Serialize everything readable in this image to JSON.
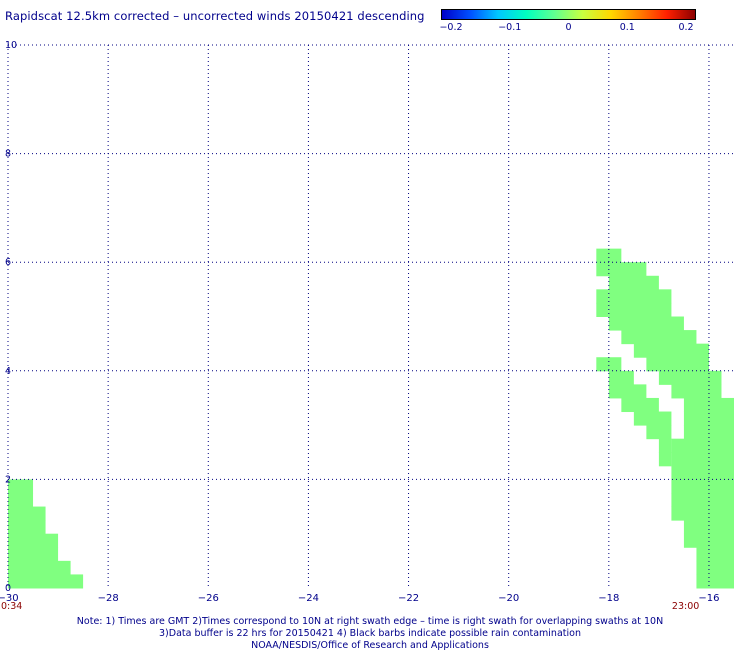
{
  "title": "Rapidscat 12.5km corrected – uncorrected winds 20150421 descending",
  "colorbar": {
    "labels": [
      "−0.2",
      "−0.1",
      "0",
      "0.1",
      "0.2"
    ],
    "stops": [
      "#0000c8",
      "#0050ff",
      "#00c8ff",
      "#00ffc0",
      "#60ff90",
      "#c8ff40",
      "#ffd800",
      "#ff8000",
      "#ff2000",
      "#8b0000"
    ]
  },
  "colors": {
    "swath": "#80ff80",
    "grid": "#000080",
    "text": "#00008b",
    "time": "#8b0000"
  },
  "chart_data": {
    "type": "heatmap",
    "xlabel": "",
    "ylabel": "",
    "xlim": [
      -30,
      -15.5
    ],
    "ylim": [
      0,
      10
    ],
    "x_ticks": [
      "−30",
      "−28",
      "−26",
      "−24",
      "−22",
      "−20",
      "−18",
      "−16"
    ],
    "y_ticks": [
      "0",
      "2",
      "4",
      "6",
      "8",
      "10"
    ],
    "cell_size_deg": 0.25,
    "times": [
      {
        "label": "0:34",
        "lon": -30.0
      },
      {
        "label": "23:00",
        "lon": -16.6
      }
    ],
    "swaths": [
      {
        "name": "west",
        "value": 0.0,
        "rows": [
          {
            "y0": 1.75,
            "x0": -30.0,
            "x1": -29.5
          },
          {
            "y0": 1.5,
            "x0": -30.0,
            "x1": -29.5
          },
          {
            "y0": 1.25,
            "x0": -30.0,
            "x1": -29.25
          },
          {
            "y0": 1.0,
            "x0": -30.0,
            "x1": -29.25
          },
          {
            "y0": 0.75,
            "x0": -30.0,
            "x1": -29.0
          },
          {
            "y0": 0.5,
            "x0": -30.0,
            "x1": -29.0
          },
          {
            "y0": 0.25,
            "x0": -30.0,
            "x1": -28.75
          },
          {
            "y0": 0.0,
            "x0": -30.0,
            "x1": -28.5
          }
        ]
      },
      {
        "name": "east",
        "value": 0.0,
        "rows": [
          {
            "y0": 6.0,
            "x0": -18.25,
            "x1": -17.75
          },
          {
            "y0": 5.75,
            "x0": -18.25,
            "x1": -17.25
          },
          {
            "y0": 5.5,
            "x0": -18.0,
            "x1": -17.0
          },
          {
            "y0": 5.25,
            "x0": -18.0,
            "x1": -16.75
          },
          {
            "y0": 5.0,
            "x0": -18.0,
            "x1": -16.75
          },
          {
            "y0": 4.75,
            "x0": -18.0,
            "x1": -16.5
          },
          {
            "y0": 4.5,
            "x0": -17.75,
            "x1": -16.25
          },
          {
            "y0": 4.25,
            "x0": -17.5,
            "x1": -16.0
          },
          {
            "y0": 4.0,
            "x0": -17.25,
            "x1": -16.0
          },
          {
            "y0": 3.75,
            "x0": -17.0,
            "x1": -15.75
          },
          {
            "y0": 3.5,
            "x0": -16.75,
            "x1": -15.75
          },
          {
            "y0": 3.25,
            "x0": -16.5,
            "x1": -15.5
          },
          {
            "y0": 3.0,
            "x0": -16.5,
            "x1": -15.5
          },
          {
            "y0": 2.75,
            "x0": -16.5,
            "x1": -15.5
          },
          {
            "y0": 2.5,
            "x0": -16.75,
            "x1": -15.5
          },
          {
            "y0": 2.25,
            "x0": -16.75,
            "x1": -15.5
          },
          {
            "y0": 2.0,
            "x0": -16.75,
            "x1": -15.5
          },
          {
            "y0": 1.75,
            "x0": -16.75,
            "x1": -15.5
          },
          {
            "y0": 1.5,
            "x0": -16.75,
            "x1": -15.5
          },
          {
            "y0": 1.25,
            "x0": -16.75,
            "x1": -15.5
          },
          {
            "y0": 1.0,
            "x0": -16.5,
            "x1": -15.5
          },
          {
            "y0": 0.75,
            "x0": -16.5,
            "x1": -15.5
          },
          {
            "y0": 0.5,
            "x0": -16.25,
            "x1": -15.5
          },
          {
            "y0": 0.25,
            "x0": -16.25,
            "x1": -15.5
          },
          {
            "y0": 0.0,
            "x0": -16.25,
            "x1": -15.5
          },
          {
            "y0": 5.0,
            "x0": -18.25,
            "x1": -18.0
          },
          {
            "y0": 5.25,
            "x0": -18.25,
            "x1": -18.0
          },
          {
            "y0": 4.0,
            "x0": -18.25,
            "x1": -17.75
          },
          {
            "y0": 3.75,
            "x0": -18.0,
            "x1": -17.5
          },
          {
            "y0": 3.5,
            "x0": -18.0,
            "x1": -17.25
          },
          {
            "y0": 3.25,
            "x0": -17.75,
            "x1": -17.0
          },
          {
            "y0": 3.0,
            "x0": -17.5,
            "x1": -16.75
          },
          {
            "y0": 2.75,
            "x0": -17.25,
            "x1": -16.75
          },
          {
            "y0": 2.5,
            "x0": -17.0,
            "x1": -16.75
          },
          {
            "y0": 2.25,
            "x0": -17.0,
            "x1": -16.75
          }
        ]
      }
    ]
  },
  "notes": [
    "Note: 1) Times are GMT 2)Times correspond to 10N at right swath edge – time is right swath for overlapping swaths at 10N",
    "3)Data buffer is 22 hrs for 20150421 4) Black barbs indicate possible rain contamination",
    "NOAA/NESDIS/Office of Research and Applications"
  ]
}
